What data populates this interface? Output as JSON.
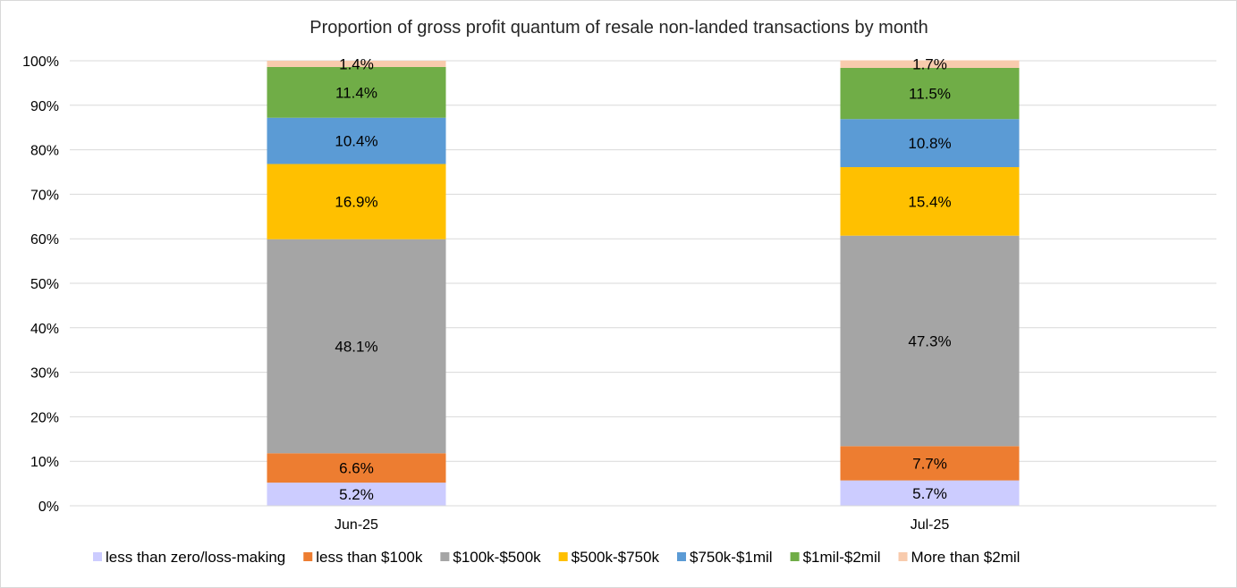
{
  "chart_data": {
    "type": "bar",
    "stacked": true,
    "title": "Proportion of gross profit quantum of resale non-landed transactions by month",
    "xlabel": "",
    "ylabel": "",
    "ylim": [
      0,
      100
    ],
    "yticks": [
      "0%",
      "10%",
      "20%",
      "30%",
      "40%",
      "50%",
      "60%",
      "70%",
      "80%",
      "90%",
      "100%"
    ],
    "categories": [
      "Jun-25",
      "Jul-25"
    ],
    "grid": true,
    "legend_position": "bottom",
    "series": [
      {
        "name": "less than zero/loss-making",
        "color": "#ccccff",
        "values": [
          5.2,
          5.7
        ],
        "labels": [
          "5.2%",
          "5.7%"
        ]
      },
      {
        "name": "less than $100k",
        "color": "#ed7d31",
        "values": [
          6.6,
          7.7
        ],
        "labels": [
          "6.6%",
          "7.7%"
        ]
      },
      {
        "name": "$100k-$500k",
        "color": "#a5a5a5",
        "values": [
          48.1,
          47.3
        ],
        "labels": [
          "48.1%",
          "47.3%"
        ]
      },
      {
        "name": "$500k-$750k",
        "color": "#ffc000",
        "values": [
          16.9,
          15.4
        ],
        "labels": [
          "16.9%",
          "15.4%"
        ]
      },
      {
        "name": "$750k-$1mil",
        "color": "#5b9bd5",
        "values": [
          10.4,
          10.8
        ],
        "labels": [
          "10.4%",
          "10.8%"
        ]
      },
      {
        "name": "$1mil-$2mil",
        "color": "#70ad47",
        "values": [
          11.4,
          11.5
        ],
        "labels": [
          "11.4%",
          "11.5%"
        ]
      },
      {
        "name": "More than $2mil",
        "color": "#f8cbad",
        "values": [
          1.4,
          1.7
        ],
        "labels": [
          "1.4%",
          "1.7%"
        ]
      }
    ]
  }
}
